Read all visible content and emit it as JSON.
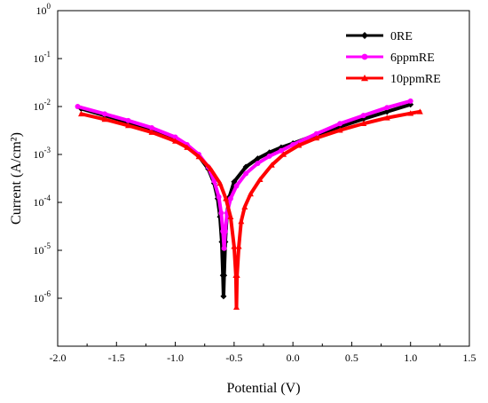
{
  "chart_data": {
    "type": "line",
    "title": "",
    "xlabel": "Potential (V)",
    "ylabel": "Current (A/cm²)",
    "xlim": [
      -2.0,
      1.5
    ],
    "ylim": [
      1e-07,
      1
    ],
    "yscale": "log",
    "grid": false,
    "legend_position": "top-right",
    "x_ticks": [
      -2.0,
      -1.5,
      -1.0,
      -0.5,
      0.0,
      0.5,
      1.0,
      1.5
    ],
    "x_tick_labels": [
      "-2.0",
      "-1.5",
      "-1.0",
      "-0.5",
      "0.0",
      "0.5",
      "1.0",
      "1.5"
    ],
    "y_ticks": [
      1e-06,
      1e-05,
      0.0001,
      0.001,
      0.01,
      0.1,
      1
    ],
    "y_tick_labels": [
      {
        "base": "10",
        "exp": "-6"
      },
      {
        "base": "10",
        "exp": "-5"
      },
      {
        "base": "10",
        "exp": "-4"
      },
      {
        "base": "10",
        "exp": "-3"
      },
      {
        "base": "10",
        "exp": "-2"
      },
      {
        "base": "10",
        "exp": "-1"
      },
      {
        "base": "10",
        "exp": "0"
      }
    ],
    "series": [
      {
        "name": "0RE",
        "color": "#000000",
        "marker": "diamond",
        "points": [
          [
            -1.8,
            0.009
          ],
          [
            -1.6,
            0.0065
          ],
          [
            -1.4,
            0.0047
          ],
          [
            -1.2,
            0.0033
          ],
          [
            -1.0,
            0.0021
          ],
          [
            -0.9,
            0.0015
          ],
          [
            -0.8,
            0.00092
          ],
          [
            -0.72,
            0.0005
          ],
          [
            -0.67,
            0.00025
          ],
          [
            -0.64,
            0.00012
          ],
          [
            -0.62,
            5e-05
          ],
          [
            -0.605,
            1.5e-05
          ],
          [
            -0.595,
            3e-06
          ],
          [
            -0.59,
            1.1e-06
          ],
          [
            -0.585,
            3e-06
          ],
          [
            -0.575,
            1.5e-05
          ],
          [
            -0.56,
            6e-05
          ],
          [
            -0.54,
            0.00013
          ],
          [
            -0.5,
            0.00027
          ],
          [
            -0.4,
            0.00055
          ],
          [
            -0.3,
            0.00082
          ],
          [
            -0.2,
            0.0011
          ],
          [
            -0.1,
            0.0014
          ],
          [
            0.0,
            0.0017
          ],
          [
            0.2,
            0.0026
          ],
          [
            0.4,
            0.0038
          ],
          [
            0.6,
            0.0055
          ],
          [
            0.8,
            0.0078
          ],
          [
            1.0,
            0.011
          ]
        ]
      },
      {
        "name": "6ppmRE",
        "color": "#ff00ff",
        "marker": "circle",
        "points": [
          [
            -1.83,
            0.01
          ],
          [
            -1.6,
            0.007
          ],
          [
            -1.4,
            0.0051
          ],
          [
            -1.2,
            0.0036
          ],
          [
            -1.0,
            0.0023
          ],
          [
            -0.9,
            0.0016
          ],
          [
            -0.8,
            0.001
          ],
          [
            -0.72,
            0.00055
          ],
          [
            -0.67,
            0.00028
          ],
          [
            -0.63,
            0.00013
          ],
          [
            -0.61,
            6e-05
          ],
          [
            -0.595,
            2.5e-05
          ],
          [
            -0.585,
            1.1e-05
          ],
          [
            -0.575,
            2.5e-05
          ],
          [
            -0.56,
            6e-05
          ],
          [
            -0.53,
            0.00012
          ],
          [
            -0.48,
            0.00022
          ],
          [
            -0.4,
            0.0004
          ],
          [
            -0.3,
            0.00065
          ],
          [
            -0.2,
            0.00092
          ],
          [
            -0.1,
            0.0012
          ],
          [
            0.0,
            0.0016
          ],
          [
            0.2,
            0.0027
          ],
          [
            0.4,
            0.0044
          ],
          [
            0.6,
            0.0065
          ],
          [
            0.8,
            0.0095
          ],
          [
            1.0,
            0.013
          ]
        ]
      },
      {
        "name": "10ppmRE",
        "color": "#ff0000",
        "marker": "triangle",
        "points": [
          [
            -1.8,
            0.007
          ],
          [
            -1.6,
            0.0054
          ],
          [
            -1.4,
            0.004
          ],
          [
            -1.2,
            0.0029
          ],
          [
            -1.0,
            0.0019
          ],
          [
            -0.9,
            0.0014
          ],
          [
            -0.8,
            0.0009
          ],
          [
            -0.7,
            0.0005
          ],
          [
            -0.62,
            0.00025
          ],
          [
            -0.57,
            0.00012
          ],
          [
            -0.53,
            5e-05
          ],
          [
            -0.5,
            1.2e-05
          ],
          [
            -0.485,
            3e-06
          ],
          [
            -0.48,
            6.5e-07
          ],
          [
            -0.475,
            3e-06
          ],
          [
            -0.46,
            1.2e-05
          ],
          [
            -0.44,
            4e-05
          ],
          [
            -0.41,
            8e-05
          ],
          [
            -0.36,
            0.00015
          ],
          [
            -0.28,
            0.0003
          ],
          [
            -0.18,
            0.0006
          ],
          [
            -0.08,
            0.001
          ],
          [
            0.05,
            0.00155
          ],
          [
            0.2,
            0.0022
          ],
          [
            0.4,
            0.0032
          ],
          [
            0.6,
            0.0044
          ],
          [
            0.8,
            0.0058
          ],
          [
            1.0,
            0.0072
          ],
          [
            1.08,
            0.0078
          ]
        ]
      }
    ]
  }
}
